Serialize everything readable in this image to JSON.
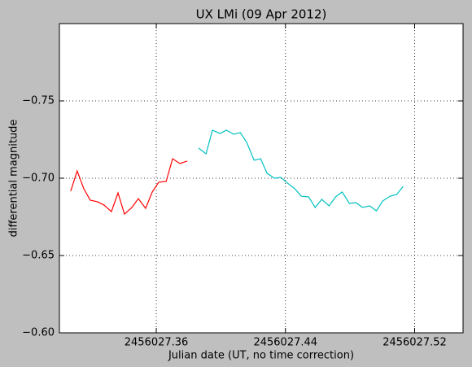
{
  "chart_data": {
    "type": "line",
    "title": "UX LMi (09 Apr 2012)",
    "x_label": "Julian date (UT, no time correction)",
    "y_label": "differential magnitude",
    "xlim": [
      2456027.3,
      2456027.55
    ],
    "ylim": [
      -0.6,
      -0.8
    ],
    "xticks": [
      2456027.36,
      2456027.44,
      2456027.52
    ],
    "yticks": [
      {
        "value": -0.6,
        "label": "−0.60"
      },
      {
        "value": -0.65,
        "label": "−0.65"
      },
      {
        "value": -0.7,
        "label": "−0.70"
      },
      {
        "value": -0.75,
        "label": "−0.75"
      }
    ],
    "grid": true,
    "series": [
      {
        "color": "#ff0000",
        "x": [
          2456027.307,
          2456027.311,
          2456027.3151,
          2456027.3191,
          2456027.3237,
          2456027.3277,
          2456027.3322,
          2456027.3363,
          2456027.3403,
          2456027.3449,
          2456027.3489,
          2456027.3534,
          2456027.3575,
          2456027.3615,
          2456027.3661,
          2456027.3701,
          2456027.3746,
          2456027.3792
        ],
        "values": [
          -0.6916,
          -0.7047,
          -0.6932,
          -0.6858,
          -0.6847,
          -0.6826,
          -0.6784,
          -0.6905,
          -0.6768,
          -0.6811,
          -0.6868,
          -0.6805,
          -0.6911,
          -0.6974,
          -0.6979,
          -0.7126,
          -0.7095,
          -0.7111
        ]
      },
      {
        "color": "#00bfbf",
        "x": [
          2456027.3862,
          2456027.3908,
          2456027.3948,
          2456027.3994,
          2456027.4034,
          2456027.408,
          2456027.412,
          2456027.416,
          2456027.4206,
          2456027.4246,
          2456027.4286,
          2456027.4332,
          2456027.4372,
          2456027.4413,
          2456027.4458,
          2456027.4498,
          2456027.4544,
          2456027.4584,
          2456027.4625,
          2456027.467,
          2456027.471,
          2456027.4751,
          2456027.4796,
          2456027.4837,
          2456027.4877,
          2456027.4922,
          2456027.4963,
          2456027.5003,
          2456027.5049,
          2456027.5089,
          2456027.5129
        ],
        "values": [
          -0.7195,
          -0.7158,
          -0.7311,
          -0.7289,
          -0.7311,
          -0.7284,
          -0.7295,
          -0.7232,
          -0.7116,
          -0.7126,
          -0.7032,
          -0.7,
          -0.7005,
          -0.6968,
          -0.6932,
          -0.6884,
          -0.6879,
          -0.6811,
          -0.6863,
          -0.6821,
          -0.6879,
          -0.6911,
          -0.6837,
          -0.6842,
          -0.6811,
          -0.6821,
          -0.6789,
          -0.6853,
          -0.6884,
          -0.6895,
          -0.6947
        ]
      }
    ]
  }
}
